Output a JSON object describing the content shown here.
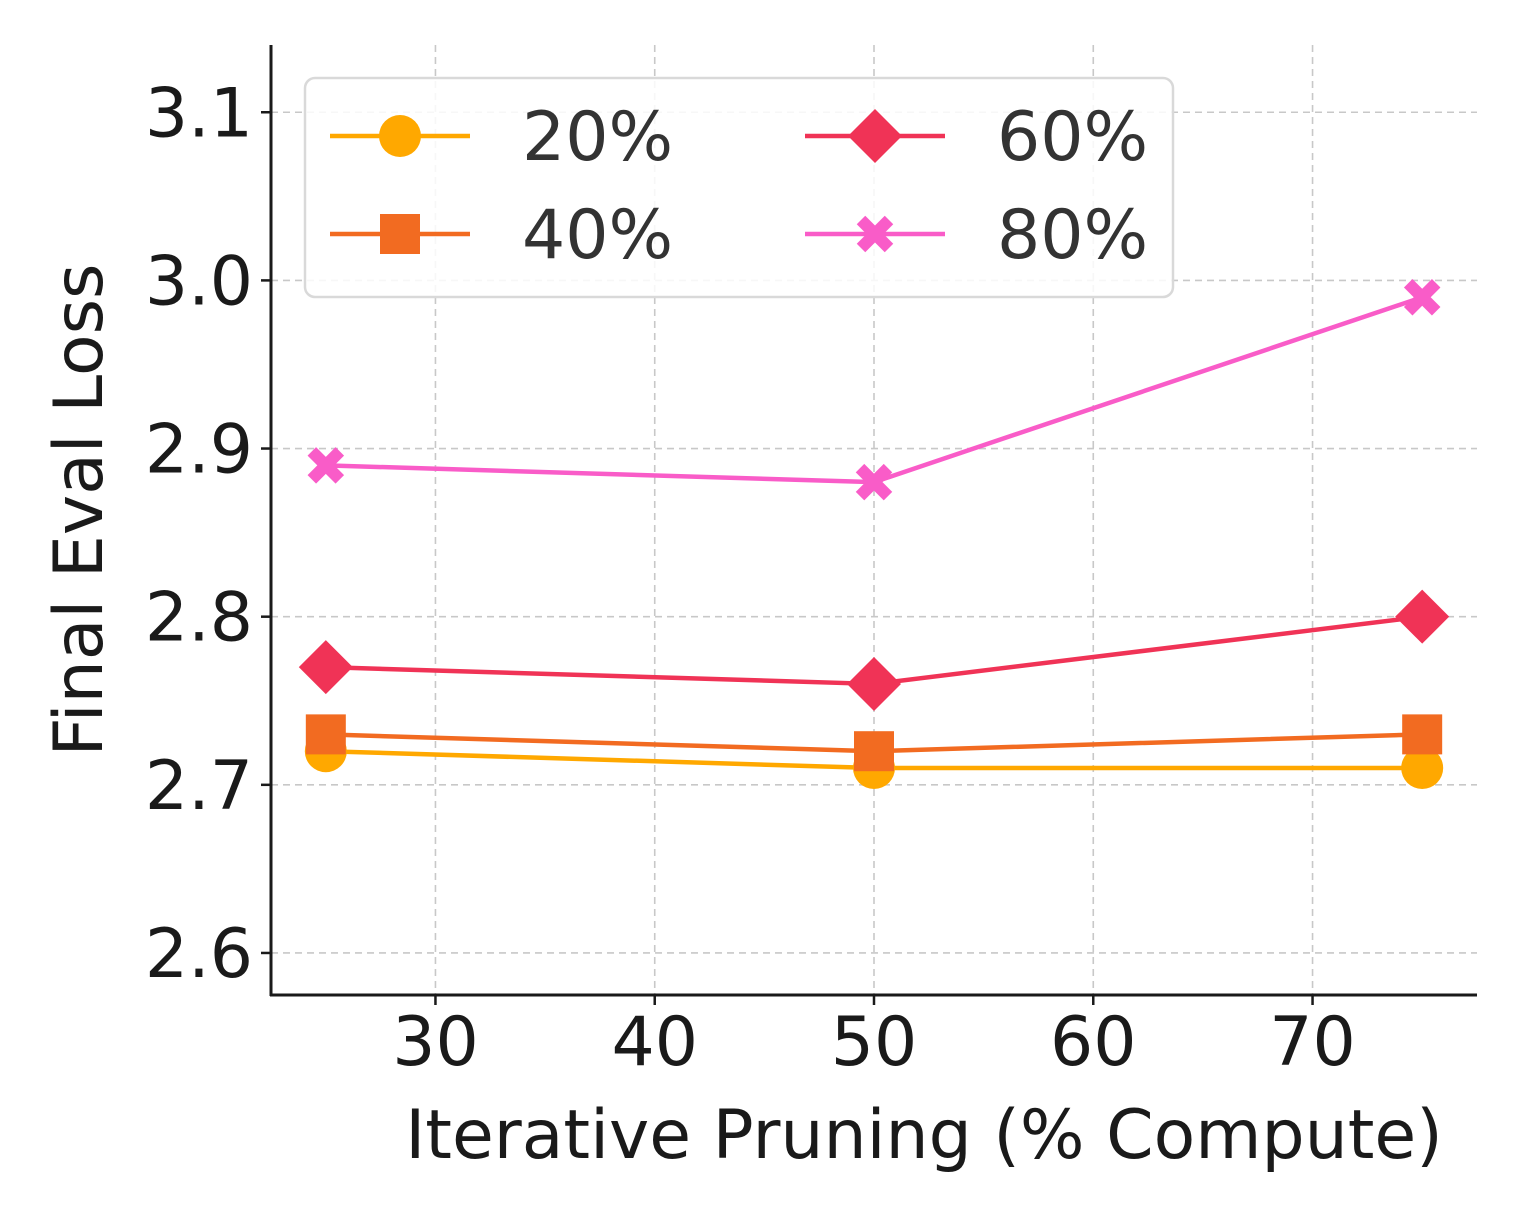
{
  "chart_data": {
    "type": "line",
    "title": "",
    "xlabel": "Iterative Pruning (% Compute)",
    "ylabel": "Final Eval Loss",
    "xlim": [
      22.5,
      77.5
    ],
    "ylim": [
      2.575,
      3.14
    ],
    "xticks": [
      30,
      40,
      50,
      60,
      70
    ],
    "yticks": [
      2.6,
      2.7,
      2.8,
      2.9,
      3.0,
      3.1
    ],
    "xtick_labels": [
      "30",
      "40",
      "50",
      "60",
      "70"
    ],
    "ytick_labels": [
      "2.6",
      "2.7",
      "2.8",
      "2.9",
      "3.0",
      "3.1"
    ],
    "grid": true,
    "legend": {
      "placement": "top-left",
      "columns": 2
    },
    "x": [
      25,
      50,
      75
    ],
    "series": [
      {
        "name": "20%",
        "values": [
          2.72,
          2.71,
          2.71
        ],
        "color": "#FFA800",
        "marker": "circle"
      },
      {
        "name": "40%",
        "values": [
          2.73,
          2.72,
          2.73
        ],
        "color": "#F26B21",
        "marker": "square"
      },
      {
        "name": "60%",
        "values": [
          2.77,
          2.76,
          2.8
        ],
        "color": "#F03356",
        "marker": "diamond"
      },
      {
        "name": "80%",
        "values": [
          2.89,
          2.88,
          2.99
        ],
        "color": "#F95CC8",
        "marker": "x"
      }
    ]
  }
}
